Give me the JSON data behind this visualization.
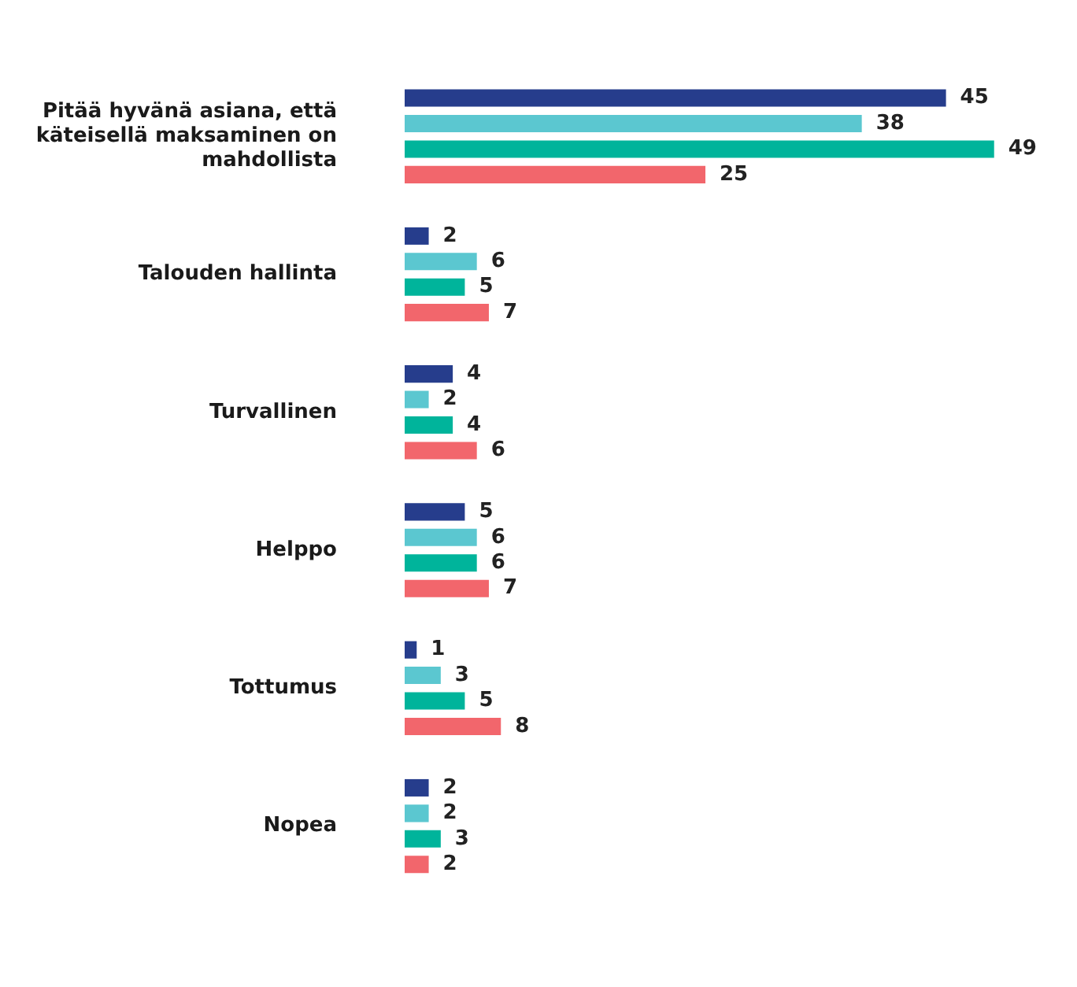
{
  "chart_data": {
    "type": "bar",
    "orientation": "horizontal",
    "data_labels": true,
    "categories": [
      "Pitää hyvänä asiana, että käteisellä maksaminen on mahdollista",
      "Talouden hallinta",
      "Turvallinen",
      "Helppo",
      "Tottumus",
      "Nopea"
    ],
    "series": [
      {
        "color": "#263d8c",
        "values": [
          45,
          2,
          4,
          5,
          1,
          2
        ]
      },
      {
        "color": "#5bc7d0",
        "values": [
          38,
          6,
          2,
          6,
          3,
          2
        ]
      },
      {
        "color": "#00b49b",
        "values": [
          49,
          5,
          4,
          6,
          5,
          3
        ]
      },
      {
        "color": "#f2666c",
        "values": [
          25,
          7,
          6,
          7,
          8,
          2
        ]
      }
    ]
  }
}
